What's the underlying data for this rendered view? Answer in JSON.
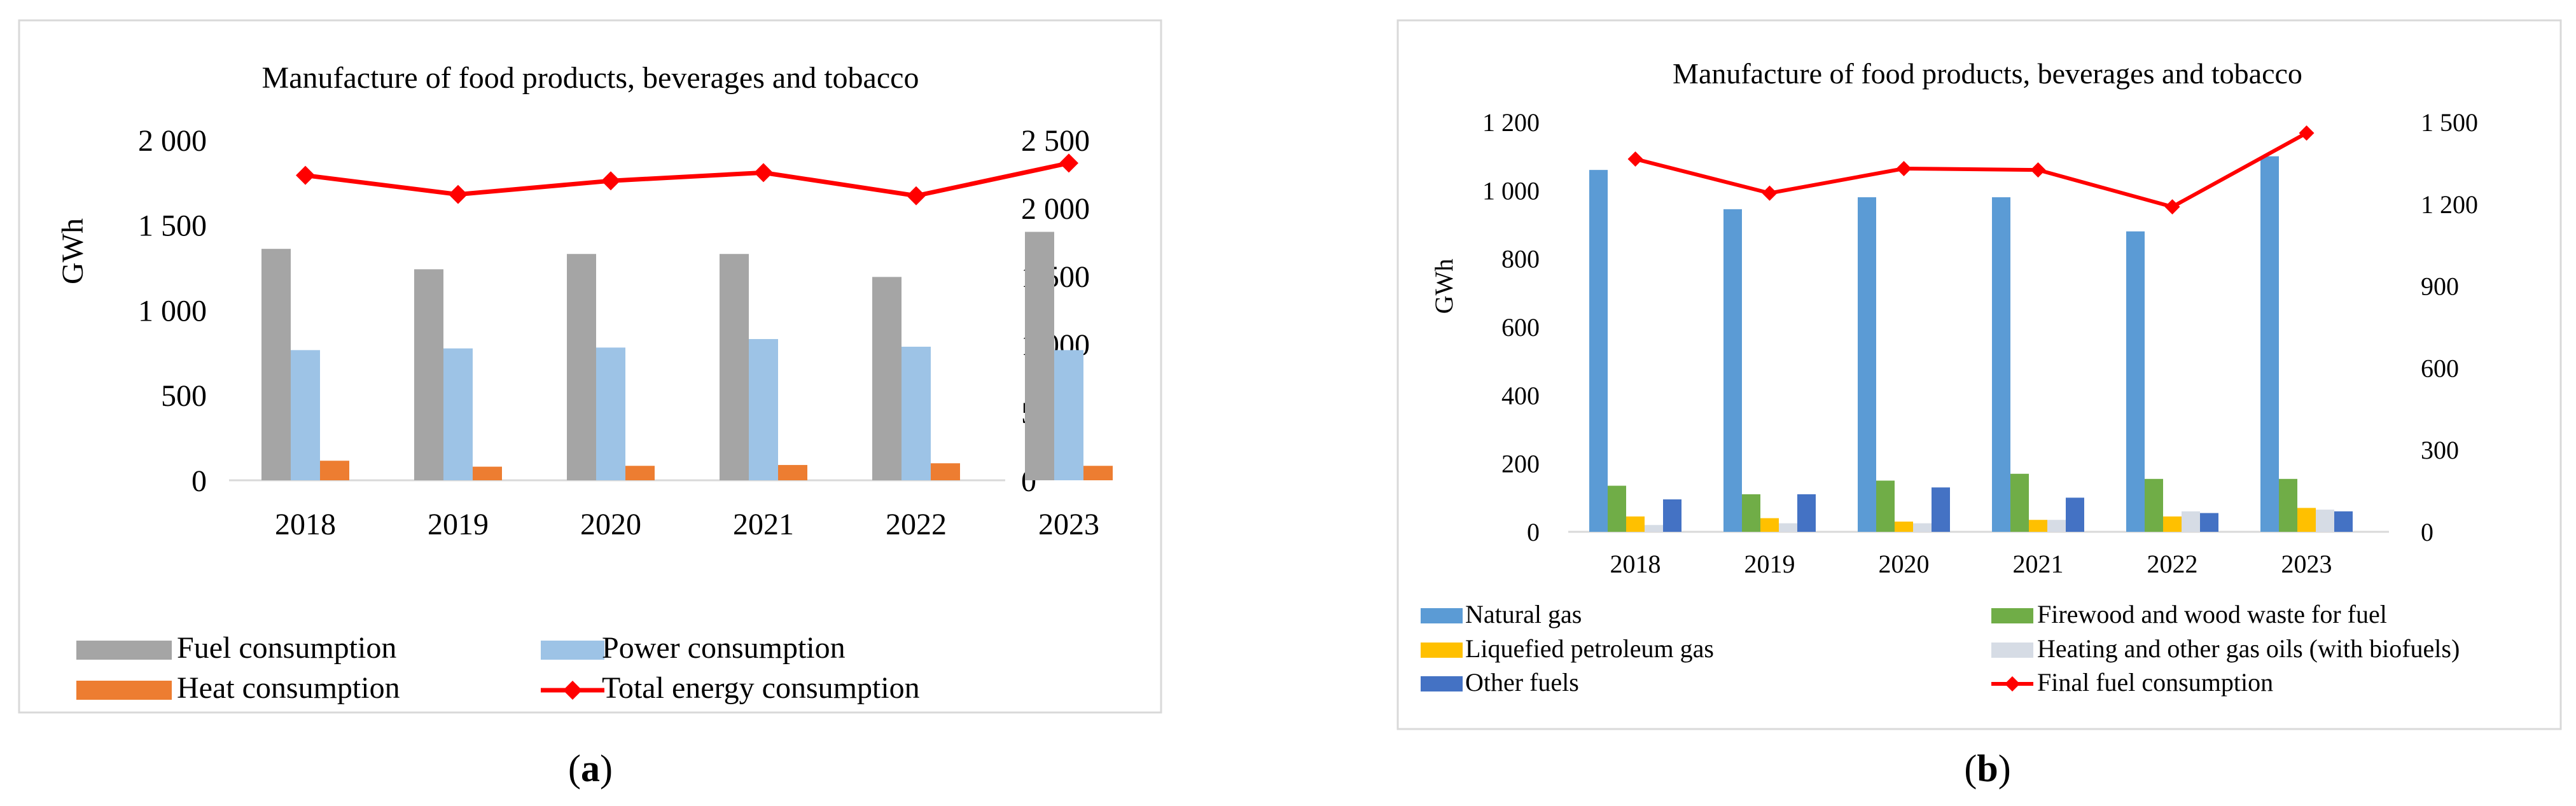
{
  "chart_data": [
    {
      "type": "bar",
      "panel_label": "(a)",
      "panel_letter": "a",
      "title": "Manufacture of food products, beverages and tobacco",
      "ylabel": "GWh",
      "categories": [
        "2018",
        "2019",
        "2020",
        "2021",
        "2022",
        "2023"
      ],
      "ylim": [
        0,
        2000
      ],
      "y2lim": [
        0,
        2500
      ],
      "yticks": [
        "0",
        "500",
        "1 000",
        "1 500",
        "2 000"
      ],
      "y2ticks": [
        "0",
        "500",
        "1 000",
        "1 500",
        "2 000",
        "2 500"
      ],
      "series": [
        {
          "name": "Fuel consumption",
          "color": "#a5a5a5",
          "kind": "bar",
          "axis": "left",
          "values": [
            1360,
            1240,
            1330,
            1330,
            1195,
            1460
          ]
        },
        {
          "name": "Power consumption",
          "color": "#9dc3e6",
          "kind": "bar",
          "axis": "left",
          "values": [
            765,
            775,
            780,
            830,
            785,
            765
          ]
        },
        {
          "name": "Heat consumption",
          "color": "#ed7d31",
          "kind": "bar",
          "axis": "left",
          "values": [
            115,
            80,
            85,
            90,
            100,
            85
          ]
        },
        {
          "name": "Total energy consumption",
          "color": "#ff0000",
          "kind": "line",
          "axis": "right",
          "values": [
            2240,
            2100,
            2200,
            2260,
            2090,
            2330
          ]
        }
      ],
      "legend": "bottom"
    },
    {
      "type": "bar",
      "panel_label": "(b)",
      "panel_letter": "b",
      "title": "Manufacture of food products, beverages and tobacco",
      "ylabel": "GWh",
      "categories": [
        "2018",
        "2019",
        "2020",
        "2021",
        "2022",
        "2023"
      ],
      "ylim": [
        0,
        1200
      ],
      "y2lim": [
        0,
        1500
      ],
      "yticks": [
        "0",
        "200",
        "400",
        "600",
        "800",
        "1 000",
        "1 200"
      ],
      "y2ticks": [
        "0",
        "300",
        "600",
        "900",
        "1 200",
        "1 500"
      ],
      "series": [
        {
          "name": "Natural gas",
          "color": "#5b9bd5",
          "kind": "bar",
          "axis": "left",
          "values": [
            1060,
            945,
            980,
            980,
            880,
            1100
          ]
        },
        {
          "name": "Firewood and wood waste for fuel",
          "color": "#70ad47",
          "kind": "bar",
          "axis": "left",
          "values": [
            135,
            110,
            150,
            170,
            155,
            155
          ]
        },
        {
          "name": "Liquefied petroleum gas",
          "color": "#ffc000",
          "kind": "bar",
          "axis": "left",
          "values": [
            45,
            40,
            30,
            35,
            45,
            70
          ]
        },
        {
          "name": "Heating and other gas oils (with biofuels)",
          "color": "#d6dce5",
          "kind": "bar",
          "axis": "left",
          "values": [
            20,
            25,
            25,
            35,
            60,
            65
          ]
        },
        {
          "name": "Other fuels",
          "color": "#4472c4",
          "kind": "bar",
          "axis": "left",
          "values": [
            95,
            110,
            130,
            100,
            55,
            60
          ]
        },
        {
          "name": "Final fuel consumption",
          "color": "#ff0000",
          "kind": "line",
          "axis": "right",
          "values": [
            1365,
            1240,
            1330,
            1325,
            1190,
            1460
          ]
        }
      ],
      "legend": "bottom"
    }
  ]
}
